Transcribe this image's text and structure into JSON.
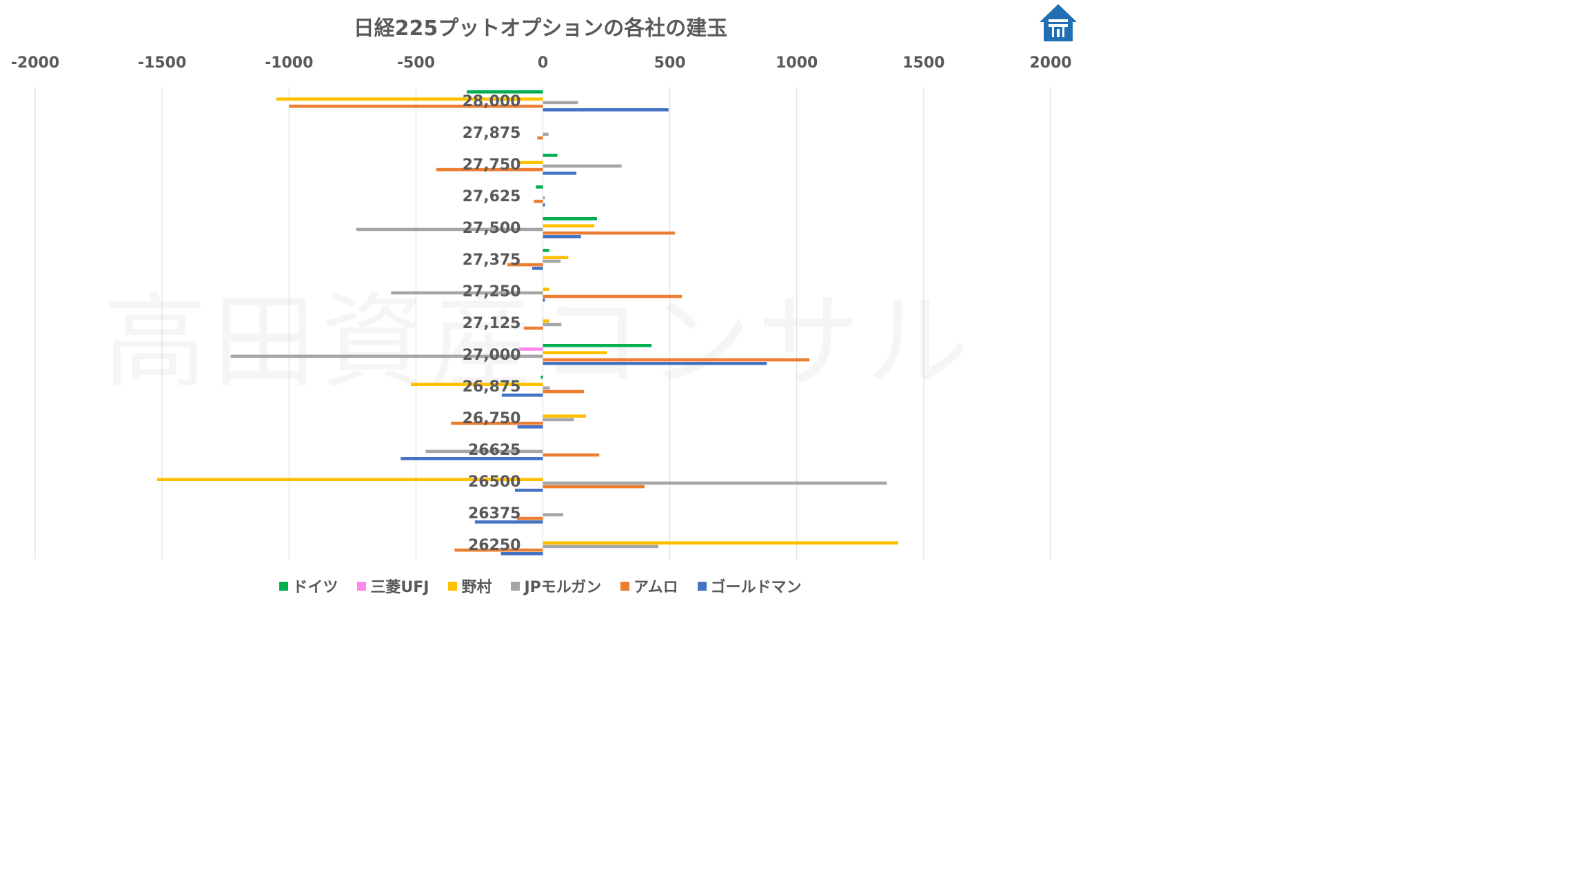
{
  "title": "日経225プットオプションの各社の建玉",
  "watermark": "高田資産コンサル",
  "colors": {
    "ドイツ": "#00b050",
    "三菱UFJ": "#ff88ee",
    "野村": "#ffc000",
    "JPモルガン": "#a5a5a5",
    "アムロ": "#ed7d31",
    "ゴールドマン": "#4472c4",
    "grid": "#d9d9d9",
    "text": "#595959",
    "logo": "#1f6fb2"
  },
  "chart_data": {
    "type": "bar",
    "orientation": "horizontal",
    "title": "日経225プットオプションの各社の建玉",
    "xlim": [
      -2000,
      2000
    ],
    "xticks": [
      -2000,
      -1500,
      -1000,
      -500,
      0,
      500,
      1000,
      1500,
      2000
    ],
    "axis_position": "top",
    "grid": true,
    "legend_position": "bottom",
    "categories": [
      "28,000",
      "27,875",
      "27,750",
      "27,625",
      "27,500",
      "27,375",
      "27,250",
      "27,125",
      "27,000",
      "26,875",
      "26,750",
      "26625",
      "26500",
      "26375",
      "26250"
    ],
    "series": [
      {
        "name": "ドイツ",
        "values": [
          -300,
          0,
          57,
          -28,
          213,
          25,
          0,
          0,
          428,
          -8,
          0,
          0,
          0,
          0,
          0
        ]
      },
      {
        "name": "三菱UFJ",
        "values": [
          0,
          0,
          0,
          0,
          0,
          0,
          0,
          0,
          -95,
          0,
          0,
          0,
          0,
          0,
          0
        ]
      },
      {
        "name": "野村",
        "values": [
          -1050,
          0,
          -90,
          0,
          203,
          100,
          25,
          25,
          252,
          -520,
          170,
          0,
          -1520,
          0,
          1400
        ]
      },
      {
        "name": "JPモルガン",
        "values": [
          138,
          22,
          310,
          8,
          -735,
          70,
          -598,
          73,
          -1230,
          27,
          122,
          -462,
          1355,
          80,
          455
        ]
      },
      {
        "name": "アムロ",
        "values": [
          -1000,
          -22,
          -420,
          -35,
          520,
          -140,
          548,
          -75,
          1050,
          162,
          -362,
          222,
          400,
          -102,
          -348
        ]
      },
      {
        "name": "ゴールドマン",
        "values": [
          495,
          0,
          132,
          8,
          150,
          -42,
          8,
          0,
          882,
          -162,
          -100,
          -560,
          -110,
          -268,
          -165
        ]
      }
    ]
  },
  "legend": [
    {
      "label": "ドイツ",
      "color": "#00b050"
    },
    {
      "label": "三菱UFJ",
      "color": "#ff88ee"
    },
    {
      "label": "野村",
      "color": "#ffc000"
    },
    {
      "label": "JPモルガン",
      "color": "#a5a5a5"
    },
    {
      "label": "アムロ",
      "color": "#ed7d31"
    },
    {
      "label": "ゴールドマン",
      "color": "#4472c4"
    }
  ]
}
